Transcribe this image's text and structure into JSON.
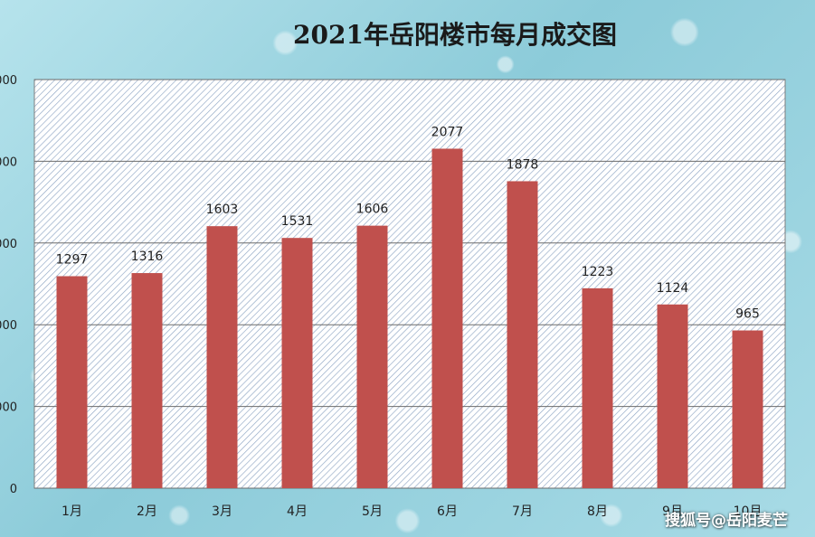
{
  "chart_data": {
    "type": "bar",
    "title": "2021年岳阳楼市每月成交图",
    "categories": [
      "1月",
      "2月",
      "3月",
      "4月",
      "5月",
      "6月",
      "7月",
      "8月",
      "9月",
      "10月"
    ],
    "values": [
      1297,
      1316,
      1603,
      1531,
      1606,
      2077,
      1878,
      1223,
      1124,
      965
    ],
    "y_ticks": [
      "000",
      "000",
      "000",
      "000",
      "000",
      "0"
    ],
    "ylim": [
      0,
      2500
    ],
    "grid": true,
    "bar_color": "#c0504d",
    "xlabel": "",
    "ylabel": ""
  },
  "watermark": "搜狐号@岳阳麦芒"
}
